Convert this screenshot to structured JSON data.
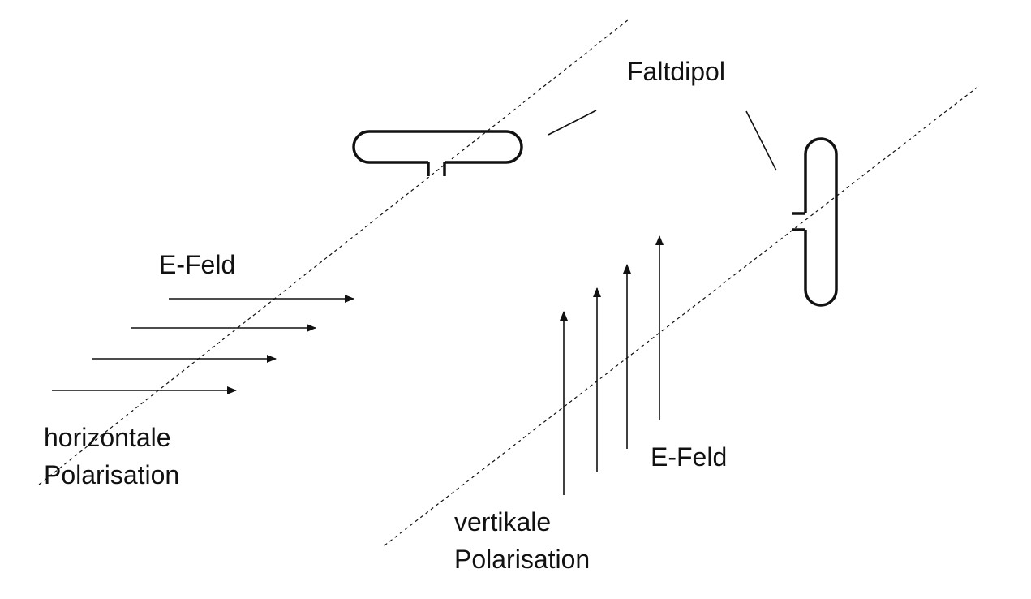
{
  "labels": {
    "faltdipol": "Faltdipol",
    "e_feld_horizontal": "E-Feld",
    "horizontal_pol_line1": "horizontale",
    "horizontal_pol_line2": "Polarisation",
    "e_feld_vertical": "E-Feld",
    "vertical_pol_line1": "vertikale",
    "vertical_pol_line2": "Polarisation"
  },
  "colors": {
    "stroke": "#111111",
    "background": "#ffffff"
  }
}
